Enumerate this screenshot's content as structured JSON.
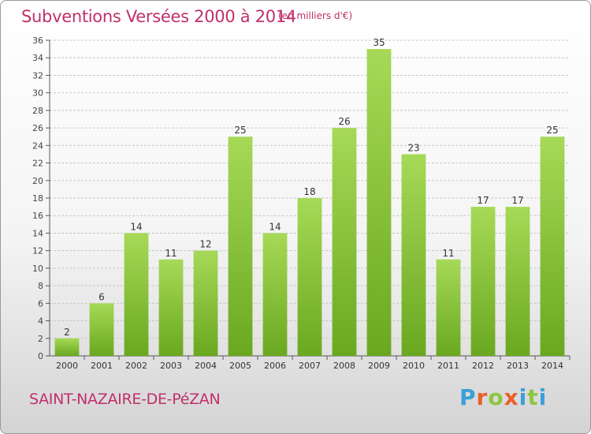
{
  "header": {
    "title": "Subventions Versées 2000 à 2014",
    "unit": "(en milliers d'€)"
  },
  "footer": {
    "commune": "SAINT-NAZAIRE-DE-PéZAN",
    "logo_letters": [
      "P",
      "r",
      "o",
      "x",
      "i",
      "t",
      "i"
    ],
    "logo_colors": [
      "#3aa0d8",
      "#e8612c",
      "#8cc63f",
      "#e8612c",
      "#3aa0d8",
      "#8cc63f",
      "#3aa0d8"
    ]
  },
  "colors": {
    "title": "#c0306a",
    "bar_top": "#a6d957",
    "bar_bottom": "#6aa820",
    "grid": "#c8c8c8"
  },
  "chart_data": {
    "type": "bar",
    "title": "Subventions Versées 2000 à 2014",
    "categories": [
      "2000",
      "2001",
      "2002",
      "2003",
      "2004",
      "2005",
      "2006",
      "2007",
      "2008",
      "2009",
      "2010",
      "2011",
      "2012",
      "2013",
      "2014"
    ],
    "values": [
      2,
      6,
      14,
      11,
      12,
      25,
      14,
      18,
      26,
      35,
      23,
      11,
      17,
      17,
      25
    ],
    "ylim": [
      0,
      36
    ],
    "ytick_step": 2,
    "grid": true
  }
}
